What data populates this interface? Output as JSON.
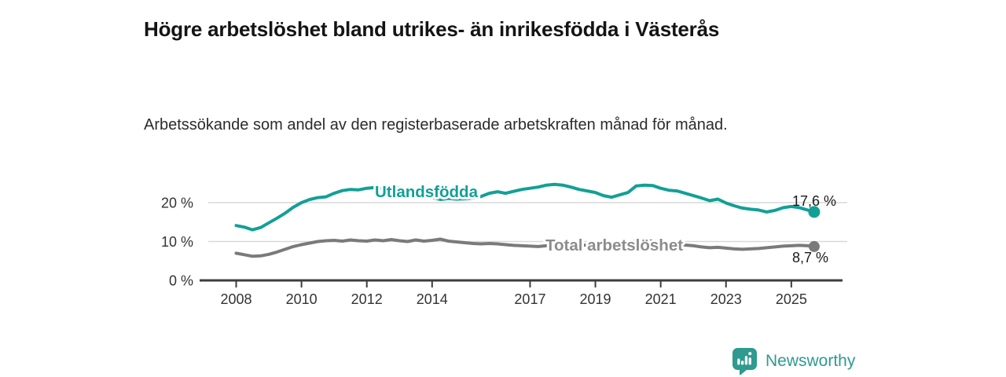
{
  "header": {
    "title": "Högre arbetslöshet bland utrikes- än inrikesfödda i Västerås",
    "subtitle": "Arbetssökande som andel av den registerbaserade arbetskraften månad för månad."
  },
  "footer": {
    "brand": "Newsworthy",
    "brand_color": "#2e9a90",
    "logo_icon": "bar-chart-speech-bubble-icon"
  },
  "chart_data": {
    "type": "line",
    "y_unit": "percent",
    "grid": "horizontal",
    "xlim": [
      2006.8,
      2026.6
    ],
    "ylim": [
      0,
      27
    ],
    "x_ticks": [
      2008,
      2010,
      2012,
      2014,
      2017,
      2019,
      2021,
      2023,
      2025
    ],
    "y_ticks": [
      {
        "value": 0,
        "label": "0 %"
      },
      {
        "value": 10,
        "label": "10 %"
      },
      {
        "value": 20,
        "label": "20 %"
      }
    ],
    "legend_position": "inline-labels",
    "series": [
      {
        "name": "Utlandsfödda",
        "color": "#12a096",
        "end_label": "17,6 %",
        "end_value": 17.6,
        "points": [
          [
            2008.0,
            14.1
          ],
          [
            2008.25,
            13.7
          ],
          [
            2008.5,
            13.0
          ],
          [
            2008.75,
            13.6
          ],
          [
            2009.0,
            14.8
          ],
          [
            2009.25,
            16.0
          ],
          [
            2009.5,
            17.3
          ],
          [
            2009.75,
            18.8
          ],
          [
            2010.0,
            20.0
          ],
          [
            2010.25,
            20.8
          ],
          [
            2010.5,
            21.3
          ],
          [
            2010.75,
            21.5
          ],
          [
            2011.0,
            22.4
          ],
          [
            2011.25,
            23.1
          ],
          [
            2011.5,
            23.4
          ],
          [
            2011.75,
            23.3
          ],
          [
            2012.0,
            23.7
          ],
          [
            2012.25,
            23.9
          ],
          [
            2012.5,
            23.6
          ],
          [
            2012.75,
            23.8
          ],
          [
            2013.0,
            23.8
          ],
          [
            2013.25,
            23.4
          ],
          [
            2013.5,
            22.8
          ],
          [
            2013.75,
            22.0
          ],
          [
            2014.0,
            21.4
          ],
          [
            2014.25,
            20.8
          ],
          [
            2014.5,
            21.1
          ],
          [
            2014.75,
            20.9
          ],
          [
            2015.0,
            21.0
          ],
          [
            2015.25,
            21.2
          ],
          [
            2015.5,
            21.6
          ],
          [
            2015.75,
            22.4
          ],
          [
            2016.0,
            22.8
          ],
          [
            2016.25,
            22.4
          ],
          [
            2016.5,
            22.9
          ],
          [
            2016.75,
            23.4
          ],
          [
            2017.0,
            23.7
          ],
          [
            2017.25,
            24.0
          ],
          [
            2017.5,
            24.5
          ],
          [
            2017.75,
            24.7
          ],
          [
            2018.0,
            24.5
          ],
          [
            2018.25,
            24.0
          ],
          [
            2018.5,
            23.4
          ],
          [
            2018.75,
            23.0
          ],
          [
            2019.0,
            22.6
          ],
          [
            2019.25,
            21.8
          ],
          [
            2019.5,
            21.4
          ],
          [
            2019.75,
            22.0
          ],
          [
            2020.0,
            22.6
          ],
          [
            2020.25,
            24.3
          ],
          [
            2020.5,
            24.5
          ],
          [
            2020.75,
            24.4
          ],
          [
            2021.0,
            23.7
          ],
          [
            2021.25,
            23.2
          ],
          [
            2021.5,
            23.0
          ],
          [
            2021.75,
            22.4
          ],
          [
            2022.0,
            21.8
          ],
          [
            2022.25,
            21.2
          ],
          [
            2022.5,
            20.5
          ],
          [
            2022.75,
            20.9
          ],
          [
            2023.0,
            19.9
          ],
          [
            2023.25,
            19.2
          ],
          [
            2023.5,
            18.6
          ],
          [
            2023.75,
            18.3
          ],
          [
            2024.0,
            18.1
          ],
          [
            2024.25,
            17.6
          ],
          [
            2024.5,
            18.0
          ],
          [
            2024.75,
            18.7
          ],
          [
            2025.0,
            19.0
          ],
          [
            2025.25,
            18.7
          ],
          [
            2025.5,
            18.1
          ],
          [
            2025.7,
            17.6
          ]
        ]
      },
      {
        "name": "Total arbetslöshet",
        "color": "#7a7a7a",
        "label_color": "#8c8c8c",
        "end_label": "8,7 %",
        "end_value": 8.7,
        "points": [
          [
            2008.0,
            7.0
          ],
          [
            2008.25,
            6.6
          ],
          [
            2008.5,
            6.2
          ],
          [
            2008.75,
            6.3
          ],
          [
            2009.0,
            6.7
          ],
          [
            2009.25,
            7.3
          ],
          [
            2009.5,
            8.0
          ],
          [
            2009.75,
            8.7
          ],
          [
            2010.0,
            9.2
          ],
          [
            2010.25,
            9.6
          ],
          [
            2010.5,
            10.0
          ],
          [
            2010.75,
            10.2
          ],
          [
            2011.0,
            10.3
          ],
          [
            2011.25,
            10.1
          ],
          [
            2011.5,
            10.4
          ],
          [
            2011.75,
            10.2
          ],
          [
            2012.0,
            10.1
          ],
          [
            2012.25,
            10.4
          ],
          [
            2012.5,
            10.2
          ],
          [
            2012.75,
            10.5
          ],
          [
            2013.0,
            10.2
          ],
          [
            2013.25,
            10.0
          ],
          [
            2013.5,
            10.4
          ],
          [
            2013.75,
            10.1
          ],
          [
            2014.0,
            10.3
          ],
          [
            2014.25,
            10.6
          ],
          [
            2014.5,
            10.1
          ],
          [
            2014.75,
            9.9
          ],
          [
            2015.0,
            9.7
          ],
          [
            2015.25,
            9.5
          ],
          [
            2015.5,
            9.4
          ],
          [
            2015.75,
            9.5
          ],
          [
            2016.0,
            9.4
          ],
          [
            2016.25,
            9.2
          ],
          [
            2016.5,
            9.0
          ],
          [
            2016.75,
            8.9
          ],
          [
            2017.0,
            8.8
          ],
          [
            2017.25,
            8.7
          ],
          [
            2017.5,
            8.9
          ],
          [
            2017.75,
            9.1
          ],
          [
            2018.0,
            9.2
          ],
          [
            2018.25,
            9.1
          ],
          [
            2018.5,
            9.0
          ],
          [
            2018.75,
            9.1
          ],
          [
            2019.0,
            9.2
          ],
          [
            2019.25,
            9.1
          ],
          [
            2019.5,
            9.3
          ],
          [
            2019.75,
            9.4
          ],
          [
            2020.0,
            9.6
          ],
          [
            2020.25,
            10.2
          ],
          [
            2020.5,
            10.3
          ],
          [
            2020.75,
            10.1
          ],
          [
            2021.0,
            9.9
          ],
          [
            2021.25,
            9.6
          ],
          [
            2021.5,
            9.3
          ],
          [
            2021.75,
            9.1
          ],
          [
            2022.0,
            8.9
          ],
          [
            2022.25,
            8.6
          ],
          [
            2022.5,
            8.4
          ],
          [
            2022.75,
            8.5
          ],
          [
            2023.0,
            8.3
          ],
          [
            2023.25,
            8.1
          ],
          [
            2023.5,
            8.0
          ],
          [
            2023.75,
            8.1
          ],
          [
            2024.0,
            8.2
          ],
          [
            2024.25,
            8.4
          ],
          [
            2024.5,
            8.6
          ],
          [
            2024.75,
            8.8
          ],
          [
            2025.0,
            8.9
          ],
          [
            2025.25,
            9.0
          ],
          [
            2025.5,
            8.9
          ],
          [
            2025.7,
            8.7
          ]
        ]
      }
    ]
  }
}
